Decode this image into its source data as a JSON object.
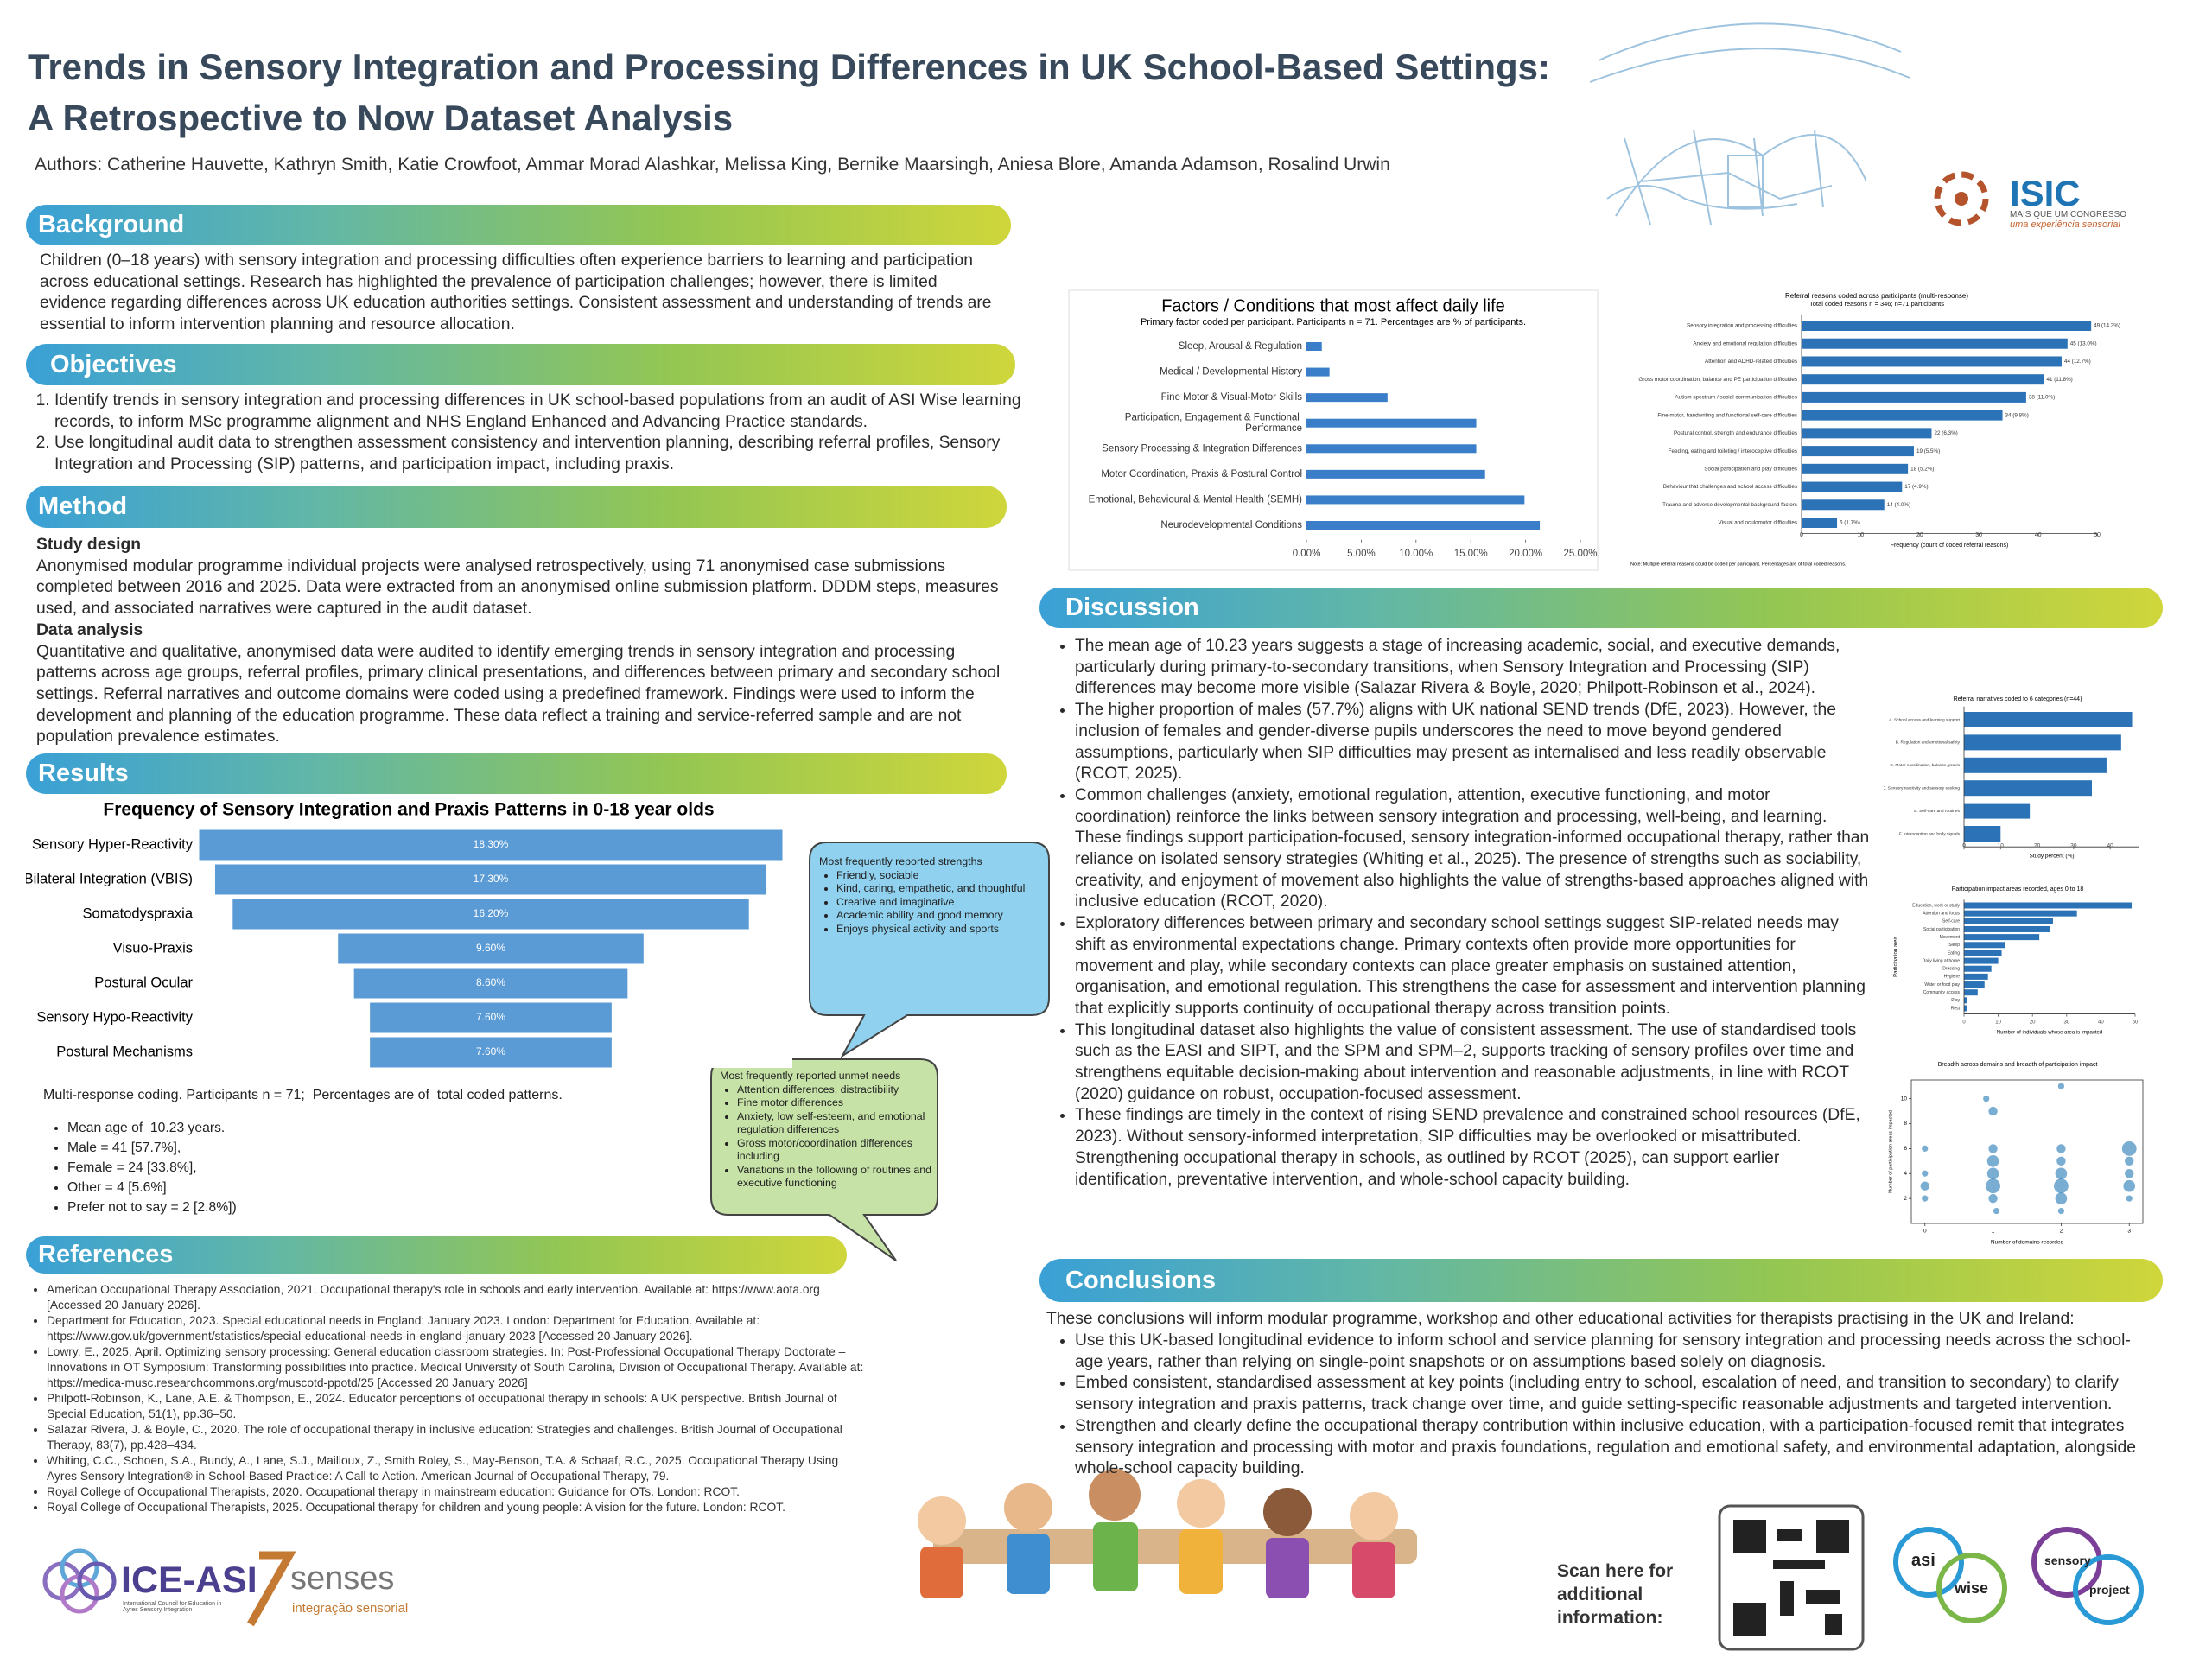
{
  "header": {
    "title": "Trends in Sensory Integration and Processing Differences in UK School-Based Settings: A Retrospective to Now Dataset Analysis",
    "authors": "Authors: Catherine Hauvette, Kathryn Smith, Katie Crowfoot, Ammar Morad Alashkar, Melissa King, Bernike Maarsingh, Aniesa Blore, Amanda Adamson, Rosalind Urwin"
  },
  "logos": {
    "isic": "ISIC",
    "isic_tagline": "MAIS QUE UM CONGRESSO",
    "isic_subtitle": "uma experiência sensorial",
    "ice_asi": "ICE-ASI",
    "ice_asi_tagline": "International Council for Education in Ayres Sensory Integration",
    "senses": "senses",
    "senses_tagline": "integração sensorial",
    "asi": "asi",
    "wise": "wise",
    "sensory": "sensory",
    "project": "project"
  },
  "background": {
    "heading": "Background",
    "text": "Children (0–18 years) with sensory integration and processing difficulties often experience barriers to learning and participation across educational settings. Research has highlighted the prevalence of participation challenges; however, there is limited evidence regarding differences across UK education authorities settings. Consistent assessment and understanding of trends are essential to inform intervention planning and resource allocation."
  },
  "objectives": {
    "heading": "Objectives",
    "items": [
      "Identify trends in sensory integration and processing differences in UK school-based populations from an audit of ASI Wise learning records, to inform MSc programme alignment and NHS England Enhanced and Advancing Practice standards.",
      "Use longitudinal audit data to strengthen assessment consistency and intervention planning, describing referral profiles, Sensory Integration and Processing (SIP) patterns, and participation impact, including praxis."
    ]
  },
  "method": {
    "heading": "Method",
    "study_design_heading": "Study design",
    "study_design": "Anonymised modular programme individual projects were analysed retrospectively, using 71 anonymised case submissions completed between 2016 and 2025. Data were extracted from an anonymised online submission platform. DDDM steps, measures used, and associated narratives were captured in the audit dataset.",
    "data_analysis_heading": "Data analysis",
    "data_analysis": "Quantitative and qualitative, anonymised data were audited to identify emerging trends in sensory integration and processing patterns across age groups, referral profiles, primary clinical presentations, and differences between primary and secondary school settings. Referral narratives and outcome domains were coded using a predefined framework. Findings were used to inform the development and planning of the education programme. These data reflect a training and service-referred sample and are not population prevalence estimates."
  },
  "results": {
    "heading": "Results",
    "note": "Multi-response coding. Participants n = 71;  Percentages are of  total coded patterns.",
    "stats": [
      "Mean age of  10.23 years.",
      "Male = 41 [57.7%],",
      "Female = 24 [33.8%],",
      "Other = 4 [5.6%]",
      "Prefer not to say = 2 [2.8%])"
    ]
  },
  "callouts": {
    "strengths": {
      "title": "Most frequently reported strengths",
      "items": [
        "Friendly, sociable",
        "Kind, caring, empathetic, and thoughtful",
        "Creative and imaginative",
        "Academic ability and good memory",
        "Enjoys physical activity and sports"
      ]
    },
    "unmet_needs": {
      "title": "Most frequently reported unmet needs",
      "items": [
        "Attention differences, distractibility",
        "Fine motor differences",
        "Anxiety, low self-esteem, and emotional regulation differences",
        "Gross motor/coordination differences including",
        "Variations in the following of routines and executive functioning"
      ]
    }
  },
  "charts": {
    "funnel": {
      "type": "funnel",
      "title": "Frequency of Sensory Integration and Praxis Patterns in 0-18 year olds",
      "categories": [
        "Sensory Hyper-Reactivity",
        "Bilateral Integration (VBIS)",
        "Somatodyspraxia",
        "Visuo-Praxis",
        "Postural Ocular",
        "Sensory Hypo-Reactivity",
        "Postural Mechanisms"
      ],
      "values": [
        18.3,
        17.3,
        16.2,
        9.6,
        8.6,
        7.6,
        7.6
      ],
      "value_labels": [
        "18.30%",
        "17.30%",
        "16.20%",
        "9.60%",
        "8.60%",
        "7.60%",
        "7.60%"
      ],
      "color": "#5b9bd5"
    },
    "factors": {
      "type": "hbar",
      "title": "Factors / Conditions that most affect daily life",
      "subtitle": "Primary factor coded per participant. Participants n = 71. Percentages are % of participants.",
      "categories": [
        "Sleep, Arousal & Regulation",
        "Medical / Developmental History",
        "Fine Motor & Visual-Motor Skills",
        "Participation, Engagement & Functional Performance",
        "Sensory Processing & Integration Differences",
        "Motor Coordination, Praxis & Postural Control",
        "Emotional, Behavioural & Mental Health (SEMH)",
        "Neurodevelopmental Conditions"
      ],
      "values": [
        1.4,
        2.1,
        7.4,
        15.5,
        15.5,
        16.3,
        19.9,
        21.3
      ],
      "xlim": [
        0,
        25
      ],
      "xticks": [
        {
          "value": 0,
          "label": "0.00%"
        },
        {
          "value": 5,
          "label": "5.00%"
        },
        {
          "value": 10,
          "label": "10.00%"
        },
        {
          "value": 15,
          "label": "15.00%"
        },
        {
          "value": 20,
          "label": "20.00%"
        },
        {
          "value": 25,
          "label": "25.00%"
        }
      ],
      "color": "#3a7dc9"
    },
    "referral": {
      "type": "hbar",
      "title": "Referral reasons coded across participants (multi-response)",
      "subtitle": "Total coded reasons n = 346; n=71 participants",
      "categories": [
        "Sensory integration and processing difficulties",
        "Anxiety and emotional regulation difficulties",
        "Attention and ADHD-related difficulties",
        "Gross motor coordination, balance and PE participation difficulties",
        "Autism spectrum / social communication difficulties",
        "Fine motor, handwriting and functional self-care difficulties",
        "Postural control, strength and endurance difficulties",
        "Feeding, eating and toileting / interoceptive difficulties",
        "Social participation and play difficulties",
        "Behaviour that challenges and school access difficulties",
        "Trauma and adverse developmental background factors",
        "Visual and oculomotor difficulties"
      ],
      "values": [
        49,
        45,
        44,
        41,
        38,
        34,
        22,
        19,
        18,
        17,
        14,
        6
      ],
      "value_labels": [
        "49 (14.2%)",
        "45 (13.0%)",
        "44 (12.7%)",
        "41 (11.8%)",
        "38 (11.0%)",
        "34 (9.8%)",
        "22 (6.3%)",
        "19 (5.5%)",
        "18 (5.2%)",
        "17 (4.9%)",
        "14 (4.0%)",
        "6 (1.7%)"
      ],
      "xlim": [
        0,
        50
      ],
      "xticks": [
        0,
        10,
        20,
        30,
        40,
        50
      ],
      "xlabel": "Frequency (count of coded referral reasons)",
      "note": "Note: Multiple referral reasons could be coded per participant. Percentages are of total coded reasons.",
      "color": "#2b73b6"
    },
    "narratives": {
      "type": "hbar",
      "title": "Referral narratives coded to 6 categories (n=44)",
      "categories": [
        "A. School access and learning support",
        "B. Regulation and emotional safety",
        "C. Motor coordination, balance, praxis",
        "D. Sensory reactivity and sensory seeking",
        "E. Self-care and routines",
        "F. Interoception and body signals"
      ],
      "values": [
        46,
        43,
        39,
        35,
        18,
        10
      ],
      "xlim": [
        0,
        48
      ],
      "xticks": [
        0,
        10,
        20,
        30,
        40
      ],
      "xlabel": "Study percent (%)",
      "color": "#2b73b6"
    },
    "participation": {
      "type": "hbar",
      "title": "Participation impact areas recorded, ages 0 to 18",
      "categories": [
        "Education, work or study",
        "Attention and focus",
        "Self-care",
        "Social participation",
        "Movement",
        "Sleep",
        "Eating",
        "Daily living at home",
        "Dressing",
        "Hygiene",
        "Water or food play",
        "Community access",
        "Play",
        "Rest"
      ],
      "values": [
        49,
        33,
        26,
        25,
        22,
        12,
        11,
        10,
        8,
        7,
        6,
        4,
        1,
        1
      ],
      "xlim": [
        0,
        50
      ],
      "xticks": [
        0,
        10,
        20,
        30,
        40,
        50
      ],
      "xlabel": "Number of individuals whose area is impacted",
      "ylabel": "Participation area",
      "color": "#2b73b6"
    },
    "scatter": {
      "type": "scatter",
      "title": "Breadth across domains and breadth of participation impact",
      "x": [
        0,
        0,
        0,
        0,
        0.9,
        1,
        1,
        1,
        1,
        1,
        1,
        1.05,
        2,
        2,
        2,
        2,
        2,
        2,
        2,
        3,
        3,
        3,
        3,
        3
      ],
      "y": [
        6,
        4,
        3,
        2,
        10,
        9,
        6,
        5,
        4,
        3,
        2,
        1,
        11,
        6,
        5,
        4,
        3,
        2,
        1,
        6,
        5,
        4,
        3,
        2
      ],
      "sizes": [
        1,
        1,
        2,
        1,
        1,
        2,
        2,
        3,
        3,
        4,
        2,
        1,
        1,
        2,
        2,
        3,
        4,
        3,
        1,
        4,
        2,
        2,
        3,
        1
      ],
      "xlim": [
        -0.2,
        3.2
      ],
      "ylim": [
        0,
        11.5
      ],
      "xticks": [
        0,
        1,
        2,
        3
      ],
      "yticks": [
        2,
        4,
        6,
        8,
        10
      ],
      "xlabel": "Number of domains recorded",
      "ylabel": "Number of participation areas impacted",
      "color": "#1f77b4"
    }
  },
  "references": {
    "heading": "References",
    "items": [
      "American Occupational Therapy Association, 2021. Occupational therapy's role in schools and early intervention. Available at: https://www.aota.org [Accessed 20 January 2026].",
      "Department for Education, 2023. Special educational needs in England: January 2023. London: Department for Education. Available at: https://www.gov.uk/government/statistics/special-educational-needs-in-england-january-2023 [Accessed 20 January 2026].",
      "Lowry, E., 2025, April. Optimizing sensory processing: General education classroom strategies. In: Post-Professional Occupational Therapy Doctorate – Innovations in OT Symposium: Transforming possibilities into practice. Medical University of South Carolina, Division of Occupational Therapy. Available at: https://medica-musc.researchcommons.org/muscotd-ppotd/25 [Accessed 20 January 2026]",
      "Philpott-Robinson, K., Lane, A.E. & Thompson, E., 2024. Educator perceptions of occupational therapy in schools: A UK perspective. British Journal of Special Education, 51(1), pp.36–50.",
      "Salazar Rivera, J. & Boyle, C., 2020. The role of occupational therapy in inclusive education: Strategies and challenges. British Journal of Occupational Therapy, 83(7), pp.428–434.",
      "Whiting, C.C., Schoen, S.A., Bundy, A., Lane, S.J., Mailloux, Z., Smith Roley, S., May-Benson, T.A. & Schaaf, R.C., 2025. Occupational Therapy Using Ayres Sensory Integration® in School-Based Practice: A Call to Action. American Journal of Occupational Therapy, 79.",
      "Royal College of Occupational Therapists, 2020. Occupational therapy in mainstream education: Guidance for OTs. London: RCOT.",
      "Royal College of Occupational Therapists, 2025. Occupational therapy for children and young people: A vision for the future. London: RCOT."
    ]
  },
  "discussion": {
    "heading": "Discussion",
    "items": [
      "The mean age of 10.23 years suggests a stage of increasing academic, social, and executive demands, particularly during primary-to-secondary transitions, when Sensory Integration and Processing (SIP) differences may become more visible (Salazar Rivera & Boyle, 2020; Philpott-Robinson et al., 2024).",
      "The higher proportion of males (57.7%) aligns with UK national SEND trends (DfE, 2023). However, the inclusion of females and gender-diverse pupils underscores the need to move beyond gendered assumptions, particularly when SIP difficulties may present as internalised and less readily observable (RCOT, 2025).",
      "Common challenges (anxiety, emotional regulation, attention, executive functioning, and motor coordination) reinforce the links between sensory integration and processing, well-being, and learning. These findings support participation-focused, sensory integration-informed occupational therapy, rather than reliance on isolated sensory strategies (Whiting et al., 2025). The presence of strengths such as sociability, creativity, and enjoyment of movement also highlights the value of strengths-based approaches aligned with inclusive education (RCOT, 2020).",
      "Exploratory differences between primary and secondary school settings suggest SIP-related needs may shift as environmental expectations change. Primary contexts often provide more opportunities for movement and play, while secondary contexts can place greater emphasis on sustained attention, organisation, and emotional regulation. This strengthens the case for assessment and intervention planning that explicitly supports continuity of occupational therapy across transition points.",
      "This longitudinal dataset also highlights the value of consistent assessment. The use of standardised tools such as the EASI and SIPT, and the SPM and SPM–2, supports tracking of sensory profiles over time and strengthens equitable decision-making about intervention and reasonable adjustments, in line with RCOT (2020) guidance on robust, occupation-focused assessment.",
      "These findings are timely in the context of rising SEND prevalence and constrained school resources (DfE, 2023). Without sensory-informed interpretation, SIP difficulties may be overlooked or misattributed. Strengthening occupational therapy in schools, as outlined by RCOT (2025), can support earlier identification, preventative intervention, and whole-school capacity building."
    ]
  },
  "conclusions": {
    "heading": "Conclusions",
    "intro": "These conclusions will inform modular programme, workshop and other educational activities for therapists practising in the UK and Ireland:",
    "items": [
      "Use this UK-based longitudinal evidence to inform school and service planning for sensory integration and processing needs across the school-age years, rather than relying on single-point snapshots or on assumptions based solely on diagnosis.",
      "Embed consistent, standardised assessment at key points (including entry to school, escalation of need, and transition to secondary) to clarify sensory integration and praxis patterns, track change over time, and guide setting-specific reasonable adjustments and targeted intervention.",
      "Strengthen and clearly define the occupational therapy contribution within inclusive education, with a participation-focused remit that integrates sensory integration and processing with motor and praxis foundations, regulation and emotional safety, and environmental adaptation, alongside whole-school capacity building."
    ]
  },
  "footer": {
    "scan_text": "Scan here for additional information:"
  }
}
